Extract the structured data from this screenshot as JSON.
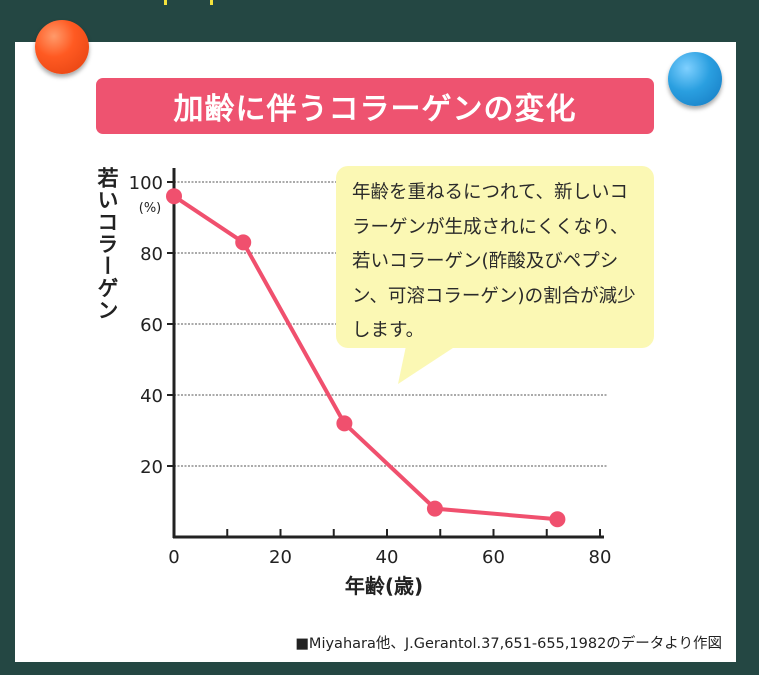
{
  "title": "加齢に伴うコラーゲンの変化",
  "colors": {
    "background": "#244743",
    "card": "#ffffff",
    "title_bar": "#ee5370",
    "line": "#f0506e",
    "callout": "#fbf8b4",
    "magnet_left": "#ff5a22",
    "magnet_right": "#2a9fe0"
  },
  "callout_text": "年齢を重ねるにつれて、新しいコラーゲンが生成されにくくなり、若いコラーゲン(酢酸及びペプシン、可溶コラーゲン)の割合が減少します。",
  "source": "■Miyahara他、J.Gerantol.37,651-655,1982のデータより作図",
  "chart_data": {
    "type": "line",
    "ylabel": "若いコラーゲン",
    "yunit": "(%)",
    "xlabel": "年齢(歳)",
    "xlim": [
      0,
      80
    ],
    "ylim": [
      0,
      100
    ],
    "xticks": [
      0,
      20,
      40,
      60,
      80
    ],
    "yticks": [
      20,
      40,
      60,
      80,
      100
    ],
    "grid": "horizontal dashed",
    "x": [
      0,
      13,
      32,
      49,
      72
    ],
    "y": [
      96,
      83,
      32,
      8,
      5
    ]
  }
}
